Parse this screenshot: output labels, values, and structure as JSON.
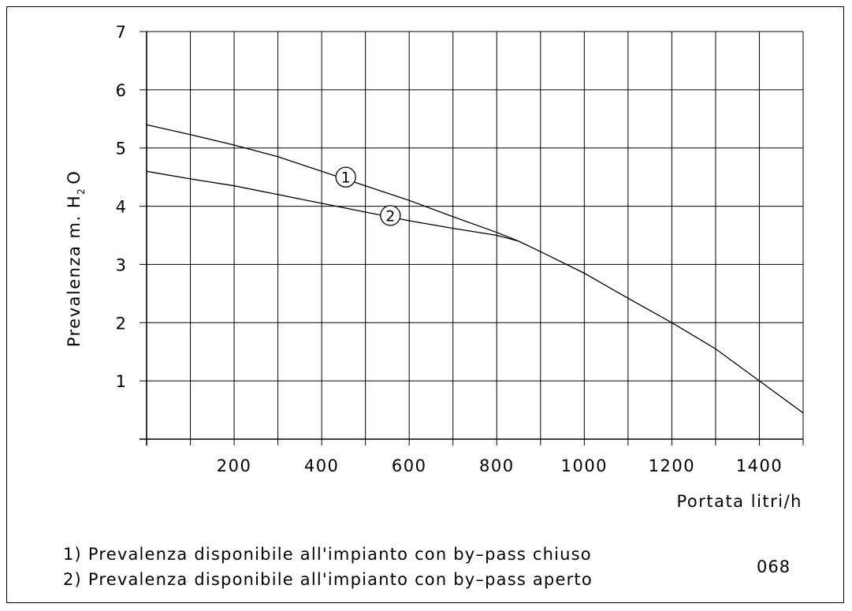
{
  "chart_data": {
    "type": "line",
    "xlabel": "Portata litri/h",
    "ylabel": "Prevalenza m. H",
    "ylabel_sub": "2",
    "ylabel_tail": "O",
    "xlim": [
      0,
      1500
    ],
    "ylim": [
      0,
      7
    ],
    "x_ticks": [
      200,
      400,
      600,
      800,
      1000,
      1200,
      1400
    ],
    "y_ticks": [
      1,
      2,
      3,
      4,
      5,
      6,
      7
    ],
    "grid": true,
    "series": [
      {
        "name": "1",
        "x": [
          0,
          100,
          200,
          300,
          400,
          500,
          600,
          700,
          800,
          850,
          900,
          1000,
          1100,
          1200,
          1300,
          1400,
          1500
        ],
        "y": [
          5.4,
          5.23,
          5.05,
          4.85,
          4.6,
          4.35,
          4.1,
          3.82,
          3.55,
          3.4,
          3.22,
          2.85,
          2.42,
          2.0,
          1.55,
          1.0,
          0.45
        ]
      },
      {
        "name": "2",
        "x": [
          0,
          100,
          200,
          300,
          400,
          500,
          600,
          700,
          800,
          850
        ],
        "y": [
          4.6,
          4.47,
          4.35,
          4.2,
          4.05,
          3.9,
          3.75,
          3.62,
          3.5,
          3.4
        ]
      }
    ],
    "markers": [
      {
        "label": "1",
        "x": 455,
        "y": 4.5
      },
      {
        "label": "2",
        "x": 557,
        "y": 3.84
      }
    ]
  },
  "legend": [
    "1)  Prevalenza  disponibile  all'impianto  con  by–pass  chiuso",
    "2)  Prevalenza  disponibile  all'impianto  con  by–pass  aperto"
  ],
  "code": "068"
}
